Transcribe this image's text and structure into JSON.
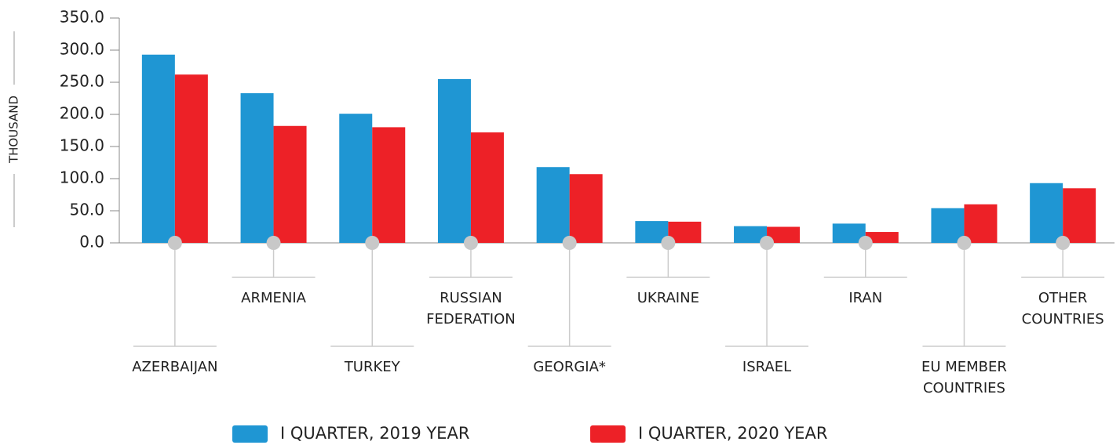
{
  "chart_data": {
    "type": "bar",
    "y_label": "THOUSAND",
    "categories": [
      "AZERBAIJAN",
      "ARMENIA",
      "TURKEY",
      "RUSSIAN\nFEDERATION",
      "GEORGIA*",
      "UKRAINE",
      "ISRAEL",
      "IRAN",
      "EU MEMBER\nCOUNTRIES",
      "OTHER\nCOUNTRIES"
    ],
    "series": [
      {
        "name": "I QUARTER, 2019 YEAR",
        "color": "#1f96d3",
        "values": [
          293,
          233,
          201,
          255,
          118,
          34,
          26,
          30,
          54,
          93
        ]
      },
      {
        "name": "I QUARTER, 2020 YEAR",
        "color": "#ed2127",
        "values": [
          262,
          182,
          180,
          172,
          107,
          33,
          25,
          17,
          60,
          85
        ]
      }
    ],
    "ylim": [
      0,
      350
    ],
    "yticks": [
      {
        "value": 0,
        "label": "0.0"
      },
      {
        "value": 50,
        "label": "50.0"
      },
      {
        "value": 100,
        "label": "100.0"
      },
      {
        "value": 150,
        "label": "150.0"
      },
      {
        "value": 200,
        "label": "200.0"
      },
      {
        "value": 250,
        "label": "250.0"
      },
      {
        "value": 300,
        "label": "300.0"
      },
      {
        "value": 350,
        "label": "350.0"
      }
    ],
    "grid": false
  }
}
